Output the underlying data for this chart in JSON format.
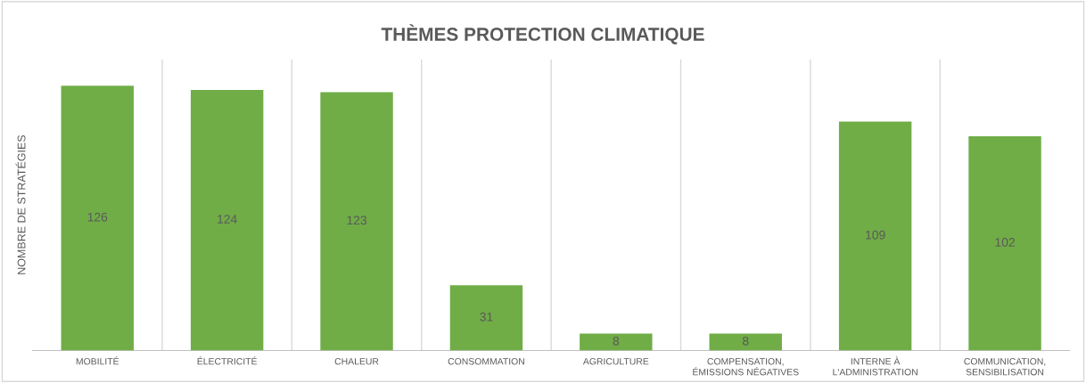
{
  "chart_data": {
    "type": "bar",
    "title": "THÈMES PROTECTION CLIMATIQUE",
    "ylabel": "NOMBRE DE STRATÉGIES",
    "categories": [
      "MOBILITÉ",
      "ÉLECTRICITÉ",
      "CHALEUR",
      "CONSOMMATION",
      "AGRICULTURE",
      "COMPENSATION,\nÉMISSIONS NÉGATIVES",
      "INTERNE À\nL'ADMINISTRATION",
      "COMMUNICATION,\nSENSIBILISATION"
    ],
    "values": [
      126,
      124,
      123,
      31,
      8,
      8,
      109,
      102
    ],
    "color": "#70ad47",
    "data_labels": true,
    "grid": "x",
    "legend": false
  }
}
